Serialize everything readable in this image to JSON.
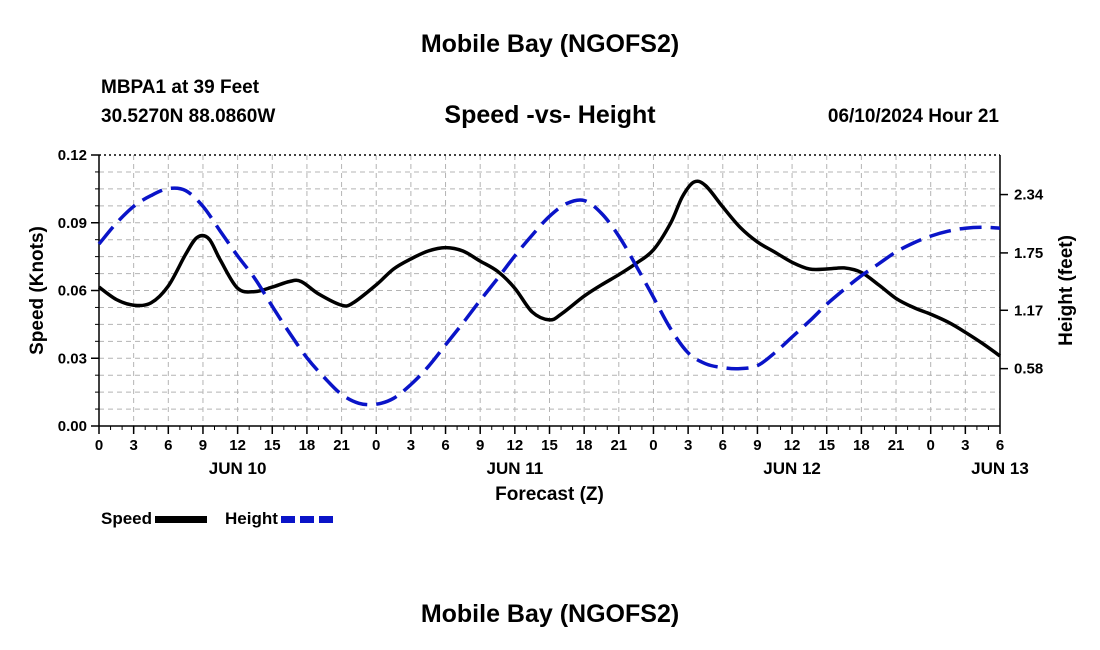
{
  "chart_data": {
    "type": "line",
    "title": "Mobile Bay (NGOFS2)",
    "station": "MBPA1 at 39 Feet",
    "coordinates": "30.5270N  88.0860W",
    "subtitle": "Speed -vs- Height",
    "run_time": "06/10/2024 Hour 21",
    "xlabel": "Forecast (Z)",
    "ylabel_left": "Speed (Knots)",
    "ylabel_right": "Height (feet)",
    "x_range_hours": [
      0,
      78
    ],
    "x_tick_step_hours": 3,
    "x_tick_labels": [
      "0",
      "3",
      "6",
      "9",
      "12",
      "15",
      "18",
      "21",
      "0",
      "3",
      "6",
      "9",
      "12",
      "15",
      "18",
      "21",
      "0",
      "3",
      "6",
      "9",
      "12",
      "15",
      "18",
      "21",
      "0",
      "3",
      "6"
    ],
    "date_labels": [
      {
        "label": "JUN 10",
        "hour": 12
      },
      {
        "label": "JUN 11",
        "hour": 36
      },
      {
        "label": "JUN 12",
        "hour": 60
      },
      {
        "label": "JUN 13",
        "hour": 78
      }
    ],
    "ylim_left": [
      0,
      0.12
    ],
    "yticks_left": [
      "0.00",
      "0.03",
      "0.06",
      "0.09",
      "0.12"
    ],
    "ylim_right": [
      0,
      2.74
    ],
    "yticks_right": [
      {
        "label": "0.58",
        "value": 0.58
      },
      {
        "label": "1.17",
        "value": 1.17
      },
      {
        "label": "1.75",
        "value": 1.75
      },
      {
        "label": "2.34",
        "value": 2.34
      }
    ],
    "grid": true,
    "series": [
      {
        "name": "Speed",
        "axis": "left",
        "color": "#000000",
        "style": "solid",
        "x": [
          0,
          1.5,
          3,
          4.5,
          6,
          7.5,
          8.5,
          9.5,
          10.5,
          12,
          13.5,
          15,
          16.5,
          17.5,
          19,
          21,
          22,
          24,
          25.5,
          27,
          28.5,
          30,
          31.5,
          33,
          34.5,
          36,
          37.5,
          39,
          40,
          42,
          43.5,
          45,
          46.5,
          48,
          49.5,
          50.5,
          51.5,
          52.5,
          54,
          55.5,
          57,
          58.5,
          60,
          61.5,
          63,
          64.5,
          66,
          67.5,
          69,
          70.5,
          72,
          73.5,
          75,
          76.5,
          78
        ],
        "values": [
          0.0615,
          0.056,
          0.0535,
          0.0545,
          0.062,
          0.076,
          0.0835,
          0.083,
          0.0735,
          0.061,
          0.0595,
          0.0615,
          0.064,
          0.064,
          0.0585,
          0.0535,
          0.0545,
          0.0625,
          0.0695,
          0.074,
          0.0775,
          0.079,
          0.0775,
          0.073,
          0.0685,
          0.061,
          0.0505,
          0.047,
          0.0495,
          0.0575,
          0.0625,
          0.067,
          0.072,
          0.078,
          0.09,
          0.1015,
          0.108,
          0.1065,
          0.097,
          0.088,
          0.0815,
          0.077,
          0.0725,
          0.0695,
          0.0695,
          0.07,
          0.068,
          0.0625,
          0.0565,
          0.0525,
          0.0495,
          0.046,
          0.0415,
          0.0365,
          0.031
        ]
      },
      {
        "name": "Height",
        "axis": "right",
        "color": "#0a14c8",
        "style": "dashed",
        "x": [
          0,
          1.5,
          3,
          4.5,
          6,
          7.5,
          9,
          10.5,
          12,
          13.5,
          15,
          16.5,
          18,
          19.5,
          21,
          22.5,
          24,
          25.5,
          27,
          28.5,
          30,
          31.5,
          33,
          34.5,
          36,
          37.5,
          39,
          40.5,
          42,
          43.5,
          45,
          46.5,
          48,
          49.5,
          51,
          52.5,
          54,
          55.5,
          57,
          58.5,
          60,
          61.5,
          63,
          64.5,
          66,
          67.5,
          69,
          70.5,
          72,
          73.5,
          75,
          76.5,
          78
        ],
        "values": [
          1.84,
          2.05,
          2.22,
          2.33,
          2.4,
          2.38,
          2.22,
          1.97,
          1.72,
          1.49,
          1.21,
          0.94,
          0.69,
          0.49,
          0.32,
          0.23,
          0.22,
          0.28,
          0.42,
          0.6,
          0.82,
          1.04,
          1.27,
          1.49,
          1.72,
          1.93,
          2.12,
          2.25,
          2.28,
          2.15,
          1.92,
          1.62,
          1.3,
          0.98,
          0.74,
          0.63,
          0.59,
          0.58,
          0.61,
          0.74,
          0.9,
          1.06,
          1.23,
          1.38,
          1.52,
          1.64,
          1.76,
          1.85,
          1.92,
          1.97,
          2.0,
          2.01,
          2.0
        ]
      }
    ]
  },
  "header": {
    "title": "Mobile Bay (NGOFS2)",
    "station": "MBPA1 at 39 Feet",
    "coordinates": "30.5270N  88.0860W",
    "subtitle": "Speed -vs- Height",
    "run_time": "06/10/2024 Hour 21"
  },
  "legend": {
    "speed_label": "Speed",
    "height_label": "Height"
  },
  "footer": {
    "title_repeat": "Mobile Bay (NGOFS2)"
  }
}
